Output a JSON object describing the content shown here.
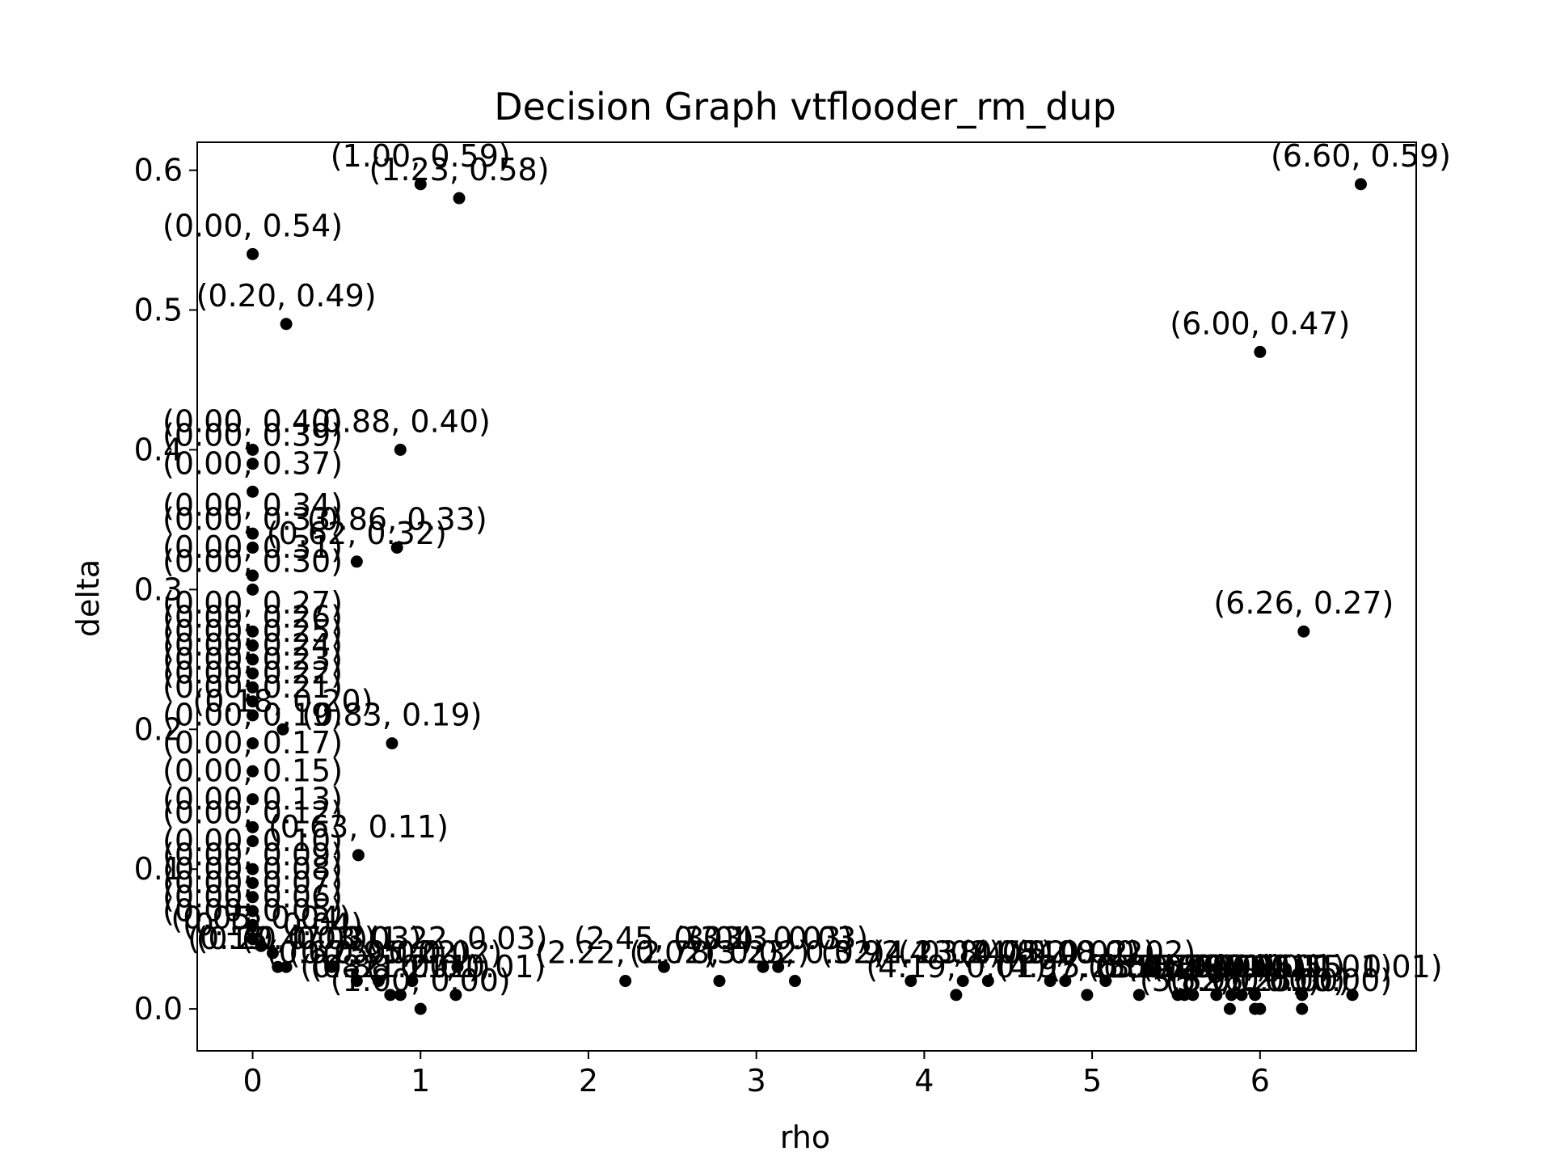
{
  "chart_data": {
    "type": "scatter",
    "title": "Decision Graph vtflooder_rm_dup",
    "xlabel": "rho",
    "ylabel": "delta",
    "xlim": [
      -0.33,
      6.93
    ],
    "ylim": [
      -0.03,
      0.62
    ],
    "xticks": [
      0,
      1,
      2,
      3,
      4,
      5,
      6
    ],
    "yticks": [
      0.0,
      0.1,
      0.2,
      0.3,
      0.4,
      0.5,
      0.6
    ],
    "xtick_labels": [
      "0",
      "1",
      "2",
      "3",
      "4",
      "5",
      "6"
    ],
    "ytick_labels": [
      "0.0",
      "0.1",
      "0.2",
      "0.3",
      "0.4",
      "0.5",
      "0.6"
    ],
    "grid": false,
    "legend": "none",
    "marker_color": "#000000",
    "points": [
      {
        "x": 0.0,
        "y": 0.54,
        "label": "(0.00, 0.54)"
      },
      {
        "x": 1.0,
        "y": 0.59,
        "label": "(1.00, 0.59)"
      },
      {
        "x": 1.23,
        "y": 0.58,
        "label": "(1.23, 0.58)"
      },
      {
        "x": 6.6,
        "y": 0.59,
        "label": "(6.60, 0.59)"
      },
      {
        "x": 0.2,
        "y": 0.49,
        "label": "(0.20, 0.49)"
      },
      {
        "x": 6.0,
        "y": 0.47,
        "label": "(6.00, 0.47)"
      },
      {
        "x": 0.0,
        "y": 0.4,
        "label": "(0.00, 0.40)"
      },
      {
        "x": 0.0,
        "y": 0.39,
        "label": "(0.00, 0.39)"
      },
      {
        "x": 0.88,
        "y": 0.4,
        "label": "(0.88, 0.40)"
      },
      {
        "x": 0.0,
        "y": 0.37,
        "label": "(0.00, 0.37)"
      },
      {
        "x": 0.0,
        "y": 0.34,
        "label": "(0.00, 0.34)"
      },
      {
        "x": 0.86,
        "y": 0.33,
        "label": "(0.86, 0.33)"
      },
      {
        "x": 0.62,
        "y": 0.32,
        "label": "(0.62, 0.32)"
      },
      {
        "x": 0.0,
        "y": 0.33,
        "label": "(0.00, 0.33)"
      },
      {
        "x": 0.0,
        "y": 0.31,
        "label": "(0.00, 0.31)"
      },
      {
        "x": 0.0,
        "y": 0.3,
        "label": "(0.00, 0.30)"
      },
      {
        "x": 6.26,
        "y": 0.27,
        "label": "(6.26, 0.27)"
      },
      {
        "x": 0.0,
        "y": 0.27,
        "label": "(0.00, 0.27)"
      },
      {
        "x": 0.0,
        "y": 0.26,
        "label": "(0.00, 0.26)"
      },
      {
        "x": 0.0,
        "y": 0.25,
        "label": "(0.00, 0.25)"
      },
      {
        "x": 0.0,
        "y": 0.24,
        "label": "(0.00, 0.24)"
      },
      {
        "x": 0.0,
        "y": 0.23,
        "label": "(0.00, 0.23)"
      },
      {
        "x": 0.0,
        "y": 0.22,
        "label": "(0.00, 0.22)"
      },
      {
        "x": 0.0,
        "y": 0.21,
        "label": "(0.00, 0.21)"
      },
      {
        "x": 0.18,
        "y": 0.2,
        "label": "(0.18, 0.20)"
      },
      {
        "x": 0.83,
        "y": 0.19,
        "label": "(0.83, 0.19)"
      },
      {
        "x": 0.0,
        "y": 0.19,
        "label": "(0.00, 0.19)"
      },
      {
        "x": 0.0,
        "y": 0.17,
        "label": "(0.00, 0.17)"
      },
      {
        "x": 0.0,
        "y": 0.15,
        "label": "(0.00, 0.15)"
      },
      {
        "x": 0.0,
        "y": 0.13,
        "label": "(0.00, 0.13)"
      },
      {
        "x": 0.0,
        "y": 0.12,
        "label": "(0.00, 0.12)"
      },
      {
        "x": 0.63,
        "y": 0.11,
        "label": "(0.63, 0.11)"
      },
      {
        "x": 0.0,
        "y": 0.1,
        "label": "(0.00, 0.10)"
      },
      {
        "x": 0.0,
        "y": 0.09,
        "label": "(0.00, 0.09)"
      },
      {
        "x": 0.0,
        "y": 0.08,
        "label": "(0.00, 0.08)"
      },
      {
        "x": 0.0,
        "y": 0.07,
        "label": "(0.00, 0.07)"
      },
      {
        "x": 0.0,
        "y": 0.06,
        "label": "(0.00, 0.06)"
      },
      {
        "x": 0.0,
        "y": 0.05,
        "label": "(0.00, 0.05)"
      },
      {
        "x": 0.12,
        "y": 0.04,
        "label": "(0.12, 0.04)"
      },
      {
        "x": 0.15,
        "y": 0.03,
        "label": "(0.15, 0.03)"
      },
      {
        "x": 0.2,
        "y": 0.03,
        "label": "(0.20, 0.03)"
      },
      {
        "x": 0.05,
        "y": 0.045,
        "label": "(0.05, 0.04)"
      },
      {
        "x": 0.47,
        "y": 0.03,
        "label": "(0.47, 0.03)"
      },
      {
        "x": 0.62,
        "y": 0.02,
        "label": "(0.62, 0.02)"
      },
      {
        "x": 0.75,
        "y": 0.02,
        "label": "(0.75, 0.02)"
      },
      {
        "x": 0.82,
        "y": 0.01,
        "label": "(0.82, 0.01)"
      },
      {
        "x": 0.88,
        "y": 0.01,
        "label": "(0.88, 0.01)"
      },
      {
        "x": 0.95,
        "y": 0.02,
        "label": "(0.95, 0.02)"
      },
      {
        "x": 1.0,
        "y": 0.0,
        "label": "(1.00, 0.00)"
      },
      {
        "x": 1.21,
        "y": 0.01,
        "label": "(1.21, 0.01)"
      },
      {
        "x": 1.22,
        "y": 0.03,
        "label": "(1.22, 0.03)"
      },
      {
        "x": 2.22,
        "y": 0.02,
        "label": "(2.22, 0.02)"
      },
      {
        "x": 2.45,
        "y": 0.03,
        "label": "(2.45, 0.03)"
      },
      {
        "x": 2.78,
        "y": 0.02,
        "label": "(2.78, 0.02)"
      },
      {
        "x": 3.04,
        "y": 0.03,
        "label": "(3.04, 0.03)"
      },
      {
        "x": 3.13,
        "y": 0.03,
        "label": "(3.13, 0.03)"
      },
      {
        "x": 3.23,
        "y": 0.02,
        "label": "(3.23, 0.02)"
      },
      {
        "x": 3.92,
        "y": 0.02,
        "label": "(3.92, 0.02)"
      },
      {
        "x": 4.19,
        "y": 0.01,
        "label": "(4.19, 0.01)"
      },
      {
        "x": 4.23,
        "y": 0.02,
        "label": "(4.23, 0.02)"
      },
      {
        "x": 4.38,
        "y": 0.02,
        "label": "(4.38, 0.02)"
      },
      {
        "x": 4.75,
        "y": 0.02,
        "label": "(4.75, 0.02)"
      },
      {
        "x": 4.84,
        "y": 0.02,
        "label": "(4.84, 0.02)"
      },
      {
        "x": 4.97,
        "y": 0.01,
        "label": "(4.97, 0.01)"
      },
      {
        "x": 5.08,
        "y": 0.02,
        "label": "(5.08, 0.02)"
      },
      {
        "x": 5.28,
        "y": 0.01,
        "label": "(5.28, 0.01)"
      },
      {
        "x": 5.51,
        "y": 0.01,
        "label": "(5.51, 0.01)"
      },
      {
        "x": 5.55,
        "y": 0.01,
        "label": "(5.55, 0.01)"
      },
      {
        "x": 5.6,
        "y": 0.01,
        "label": "(5.60, 0.01)"
      },
      {
        "x": 5.74,
        "y": 0.01,
        "label": "(5.74, 0.01)"
      },
      {
        "x": 5.82,
        "y": 0.0,
        "label": "(5.82, 0.00)"
      },
      {
        "x": 5.83,
        "y": 0.01,
        "label": "(5.83, 0.01)"
      },
      {
        "x": 5.89,
        "y": 0.01,
        "label": "(5.89, 0.01)"
      },
      {
        "x": 5.97,
        "y": 0.01,
        "label": "(5.97, 0.01)"
      },
      {
        "x": 5.97,
        "y": 0.0,
        "label": "(5.97, 0.00)"
      },
      {
        "x": 6.0,
        "y": 0.0,
        "label": "(6.00, 0.00)"
      },
      {
        "x": 6.25,
        "y": 0.0,
        "label": "(6.25, 0.00)"
      },
      {
        "x": 6.25,
        "y": 0.01,
        "label": "(6.25, 0.01)"
      },
      {
        "x": 6.55,
        "y": 0.01,
        "label": "(6.55, 0.01)"
      }
    ]
  }
}
